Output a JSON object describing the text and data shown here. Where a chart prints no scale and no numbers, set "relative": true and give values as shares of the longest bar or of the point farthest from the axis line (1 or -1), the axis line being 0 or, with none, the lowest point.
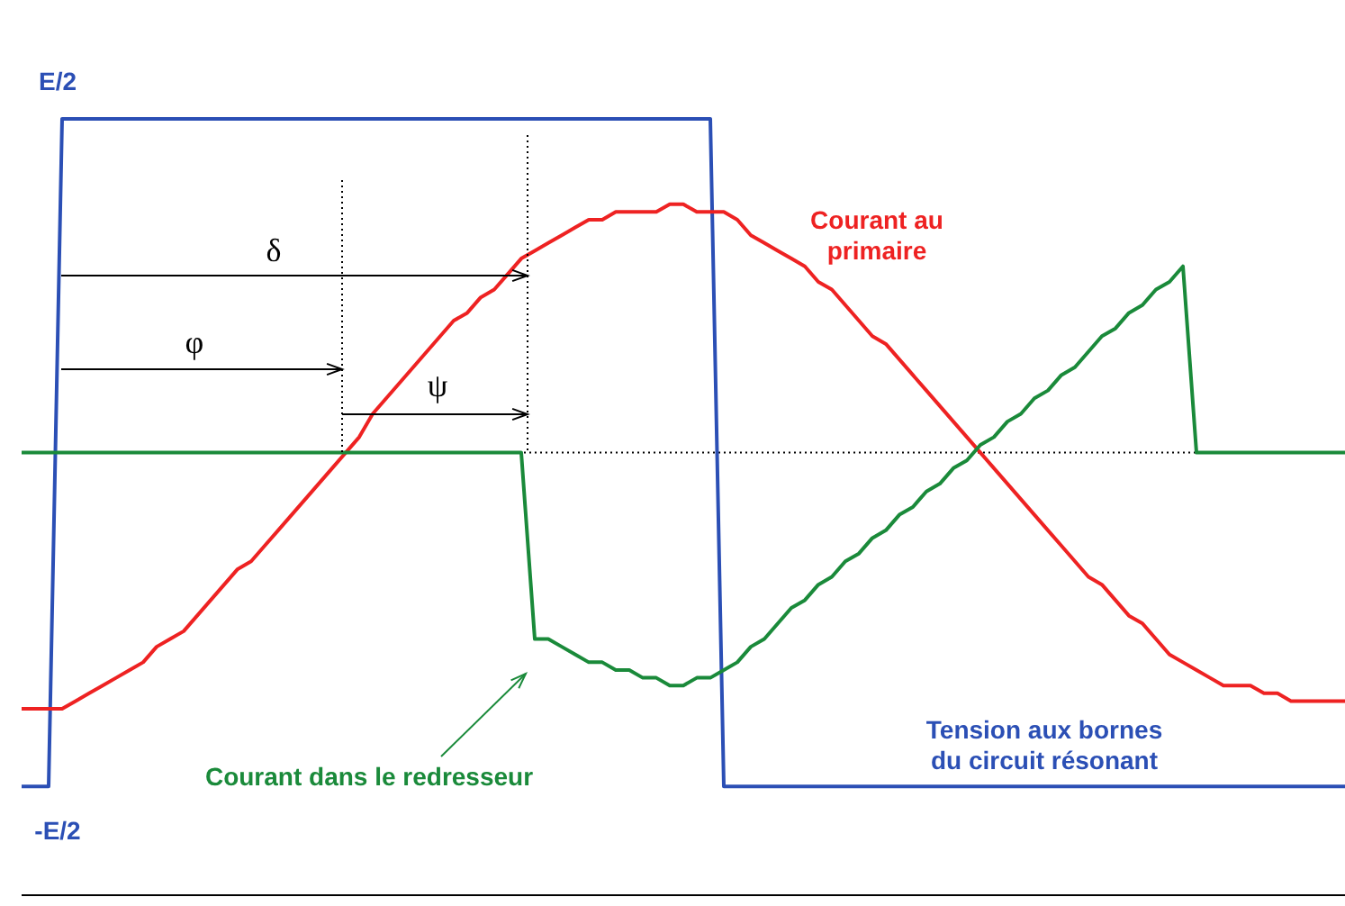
{
  "chart_data": {
    "type": "line",
    "relative": true,
    "categories": [
      null,
      null,
      null,
      null,
      null,
      null,
      null,
      null,
      null,
      null,
      null,
      null,
      null,
      null,
      null,
      null,
      null,
      null,
      null,
      null,
      null,
      null,
      null,
      null,
      null,
      null,
      null,
      null,
      null,
      null,
      null,
      null,
      null,
      null,
      null,
      null,
      null,
      null,
      null,
      null,
      null,
      null,
      null,
      null,
      null,
      null,
      null,
      null,
      null,
      null,
      null,
      null,
      null,
      null,
      null,
      null,
      null,
      null,
      null,
      null,
      null,
      null,
      null,
      null,
      null,
      null,
      null,
      null,
      null,
      null,
      null,
      null,
      null,
      null,
      null,
      null,
      null,
      null,
      null,
      null,
      null,
      null,
      null,
      null,
      null,
      null,
      null,
      null,
      null,
      null,
      null,
      null,
      null,
      null,
      null,
      null,
      null,
      null,
      null
    ],
    "series": [
      {
        "color": "#2b4fb5",
        "values": [
          0.14,
          0.14,
          0.14,
          1,
          1,
          1,
          1,
          1,
          1,
          1,
          1,
          1,
          1,
          1,
          1,
          1,
          1,
          1,
          1,
          1,
          1,
          1,
          1,
          1,
          1,
          1,
          1,
          1,
          1,
          1,
          1,
          1,
          1,
          1,
          1,
          1,
          1,
          1,
          1,
          1,
          1,
          1,
          1,
          1,
          1,
          1,
          1,
          1,
          1,
          1,
          1,
          1,
          0.14,
          0.14,
          0.14,
          0.14,
          0.14,
          0.14,
          0.14,
          0.14,
          0.14,
          0.14,
          0.14,
          0.14,
          0.14,
          0.14,
          0.14,
          0.14,
          0.14,
          0.14,
          0.14,
          0.14,
          0.14,
          0.14,
          0.14,
          0.14,
          0.14,
          0.14,
          0.14,
          0.14,
          0.14,
          0.14,
          0.14,
          0.14,
          0.14,
          0.14,
          0.14,
          0.14,
          0.14,
          0.14,
          0.14,
          0.14,
          0.14,
          0.14,
          0.14,
          0.14,
          0.14,
          0.14,
          0.14
        ]
      },
      {
        "color": "#ee2222",
        "values": [
          0.24,
          0.24,
          0.24,
          0.24,
          0.25,
          0.26,
          0.27,
          0.28,
          0.29,
          0.3,
          0.32,
          0.33,
          0.34,
          0.36,
          0.38,
          0.4,
          0.42,
          0.43,
          0.45,
          0.47,
          0.49,
          0.51,
          0.53,
          0.55,
          0.57,
          0.59,
          0.62,
          0.64,
          0.66,
          0.68,
          0.7,
          0.72,
          0.74,
          0.75,
          0.77,
          0.78,
          0.8,
          0.82,
          0.83,
          0.84,
          0.85,
          0.86,
          0.87,
          0.87,
          0.88,
          0.88,
          0.88,
          0.88,
          0.89,
          0.89,
          0.88,
          0.88,
          0.88,
          0.87,
          0.85,
          0.84,
          0.83,
          0.82,
          0.81,
          0.79,
          0.78,
          0.76,
          0.74,
          0.72,
          0.71,
          0.69,
          0.67,
          0.65,
          0.63,
          0.61,
          0.59,
          0.57,
          0.55,
          0.53,
          0.51,
          0.49,
          0.47,
          0.45,
          0.43,
          0.41,
          0.4,
          0.38,
          0.36,
          0.35,
          0.33,
          0.31,
          0.3,
          0.29,
          0.28,
          0.27,
          0.27,
          0.27,
          0.26,
          0.26,
          0.25,
          0.25,
          0.25,
          0.25,
          0.25
        ]
      },
      {
        "color": "#1a8a3a",
        "values": [
          0.57,
          0.57,
          0.57,
          0.57,
          0.57,
          0.57,
          0.57,
          0.57,
          0.57,
          0.57,
          0.57,
          0.57,
          0.57,
          0.57,
          0.57,
          0.57,
          0.57,
          0.57,
          0.57,
          0.57,
          0.57,
          0.57,
          0.57,
          0.57,
          0.57,
          0.57,
          0.57,
          0.57,
          0.57,
          0.57,
          0.57,
          0.57,
          0.57,
          0.57,
          0.57,
          0.57,
          0.57,
          0.57,
          0.33,
          0.33,
          0.32,
          0.31,
          0.3,
          0.3,
          0.29,
          0.29,
          0.28,
          0.28,
          0.27,
          0.27,
          0.28,
          0.28,
          0.29,
          0.3,
          0.32,
          0.33,
          0.35,
          0.37,
          0.38,
          0.4,
          0.41,
          0.43,
          0.44,
          0.46,
          0.47,
          0.49,
          0.5,
          0.52,
          0.53,
          0.55,
          0.56,
          0.58,
          0.59,
          0.61,
          0.62,
          0.64,
          0.65,
          0.67,
          0.68,
          0.7,
          0.72,
          0.73,
          0.75,
          0.76,
          0.78,
          0.79,
          0.81,
          0.57,
          0.57,
          0.57,
          0.57,
          0.57,
          0.57,
          0.57,
          0.57,
          0.57,
          0.57,
          0.57,
          0.57
        ]
      }
    ],
    "ref_lines": [
      {
        "axis": "y",
        "value": 0.57,
        "line_style": "dotted",
        "color": "#000000"
      }
    ],
    "annotations": [
      "E/2",
      "-E/2",
      "δ",
      "φ",
      "ψ",
      "Courant au primaire",
      "Tension aux bornes du circuit résonant",
      "Courant dans le redresseur"
    ]
  }
}
